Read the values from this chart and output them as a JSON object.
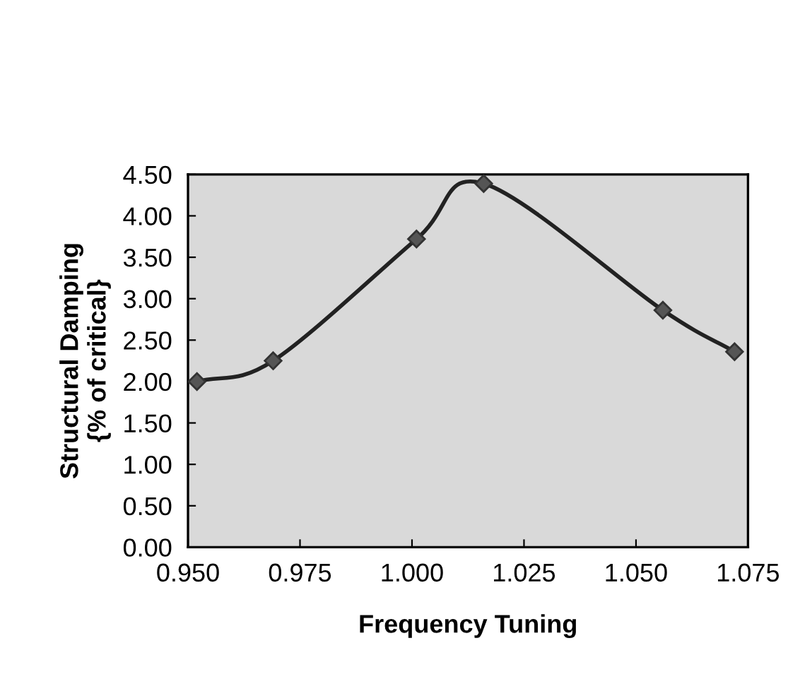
{
  "chart_data": {
    "type": "line",
    "xlabel": "Frequency Tuning",
    "ylabel": "Structural Damping\n{% of critical}",
    "x": [
      0.952,
      0.969,
      1.001,
      1.016,
      1.056,
      1.072
    ],
    "values": [
      2.0,
      2.25,
      3.72,
      4.39,
      2.86,
      2.36
    ],
    "color": "#222222",
    "marker": "diamond",
    "line_style": "solid",
    "grid": false,
    "legend": false,
    "xlim": [
      0.95,
      1.075
    ],
    "xticks": [
      {
        "value": 0.95,
        "label": "0.950"
      },
      {
        "value": 0.975,
        "label": "0.975"
      },
      {
        "value": 1.0,
        "label": "1.000"
      },
      {
        "value": 1.025,
        "label": "1.025"
      },
      {
        "value": 1.05,
        "label": "1.050"
      },
      {
        "value": 1.075,
        "label": "1.075"
      }
    ],
    "ylim": [
      0,
      4.5
    ],
    "yticks": [
      {
        "value": 0,
        "label": "0.00"
      },
      {
        "value": 0.5,
        "label": "0.50"
      },
      {
        "value": 1.0,
        "label": "1.00"
      },
      {
        "value": 1.5,
        "label": "1.50"
      },
      {
        "value": 2.0,
        "label": "2.00"
      },
      {
        "value": 2.5,
        "label": "2.50"
      },
      {
        "value": 3.0,
        "label": "3.00"
      },
      {
        "value": 3.5,
        "label": "3.50"
      },
      {
        "value": 4.0,
        "label": "4.00"
      },
      {
        "value": 4.5,
        "label": "4.50"
      }
    ]
  }
}
